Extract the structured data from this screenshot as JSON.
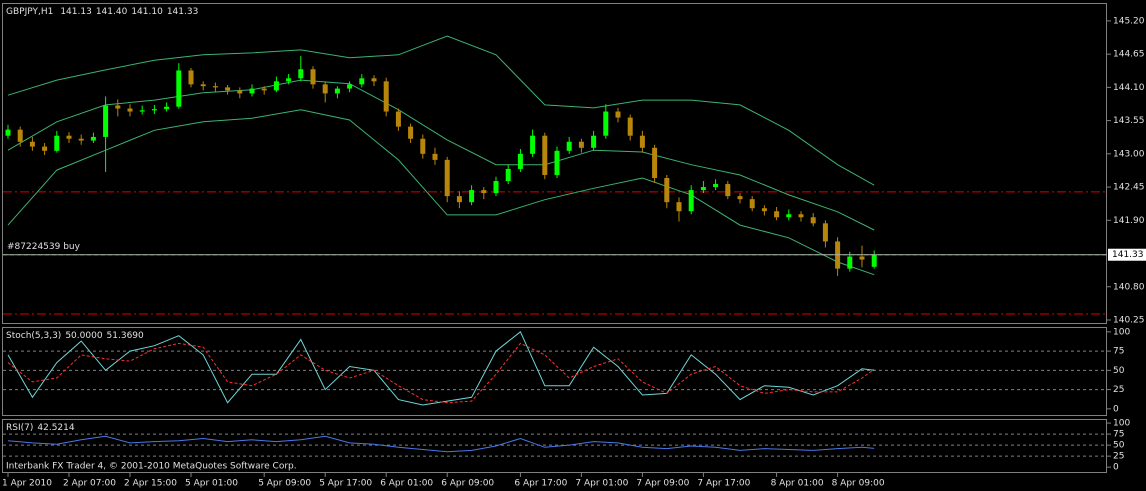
{
  "chart_data": [
    {
      "type": "candlestick",
      "symbol": "GBPJPY,H1",
      "header_values": [
        141.13,
        141.4,
        141.1,
        141.33
      ],
      "header_value_labels": [
        "141.13",
        "141.40",
        "141.10",
        "141.33"
      ],
      "categories": [
        "1 Apr 2010",
        null,
        null,
        null,
        null,
        "2 Apr 07:00",
        null,
        null,
        null,
        null,
        "2 Apr 15:00",
        null,
        null,
        null,
        null,
        "5 Apr 01:00",
        null,
        null,
        null,
        null,
        null,
        "5 Apr 09:00",
        null,
        null,
        null,
        null,
        "5 Apr 17:00",
        null,
        null,
        null,
        null,
        "6 Apr 01:00",
        null,
        null,
        null,
        null,
        "6 Apr 09:00",
        null,
        null,
        null,
        null,
        null,
        "6 Apr 17:00",
        null,
        null,
        null,
        null,
        "7 Apr 01:00",
        null,
        null,
        null,
        null,
        "7 Apr 09:00",
        null,
        null,
        null,
        null,
        "7 Apr 17:00",
        null,
        null,
        null,
        null,
        null,
        "8 Apr 01:00",
        null,
        null,
        null,
        null,
        "8 Apr 09:00",
        null,
        null,
        null
      ],
      "candles": [
        [
          143.3,
          143.48,
          143.25,
          143.4
        ],
        [
          143.4,
          143.45,
          143.12,
          143.2
        ],
        [
          143.2,
          143.28,
          143.05,
          143.12
        ],
        [
          143.12,
          143.18,
          142.98,
          143.05
        ],
        [
          143.05,
          143.38,
          143.02,
          143.3
        ],
        [
          143.3,
          143.36,
          143.18,
          143.25
        ],
        [
          143.25,
          143.32,
          143.15,
          143.22
        ],
        [
          143.22,
          143.35,
          143.18,
          143.28
        ],
        [
          143.28,
          143.95,
          142.7,
          143.8
        ],
        [
          143.8,
          143.9,
          143.62,
          143.75
        ],
        [
          143.75,
          143.82,
          143.62,
          143.7
        ],
        [
          143.7,
          143.8,
          143.65,
          143.72
        ],
        [
          143.72,
          143.81,
          143.66,
          143.74
        ],
        [
          143.74,
          143.85,
          143.7,
          143.78
        ],
        [
          143.78,
          144.5,
          143.75,
          144.38
        ],
        [
          144.38,
          144.42,
          144.1,
          144.15
        ],
        [
          144.15,
          144.2,
          144.05,
          144.12
        ],
        [
          144.12,
          144.18,
          144.02,
          144.1
        ],
        [
          144.1,
          144.14,
          143.98,
          144.05
        ],
        [
          144.05,
          144.1,
          143.92,
          144
        ],
        [
          144,
          144.15,
          143.95,
          144.08
        ],
        [
          144.08,
          144.12,
          143.98,
          144.05
        ],
        [
          144.05,
          144.28,
          144.02,
          144.2
        ],
        [
          144.2,
          144.32,
          144.15,
          144.25
        ],
        [
          144.25,
          144.62,
          144.2,
          144.4
        ],
        [
          144.4,
          144.45,
          144.08,
          144.15
        ],
        [
          144.15,
          144.2,
          143.85,
          144
        ],
        [
          144,
          144.12,
          143.92,
          144.08
        ],
        [
          144.08,
          144.2,
          144.02,
          144.15
        ],
        [
          144.15,
          144.32,
          144.1,
          144.25
        ],
        [
          144.25,
          144.3,
          144.12,
          144.2
        ],
        [
          144.2,
          144.26,
          143.62,
          143.7
        ],
        [
          143.7,
          143.75,
          143.38,
          143.45
        ],
        [
          143.45,
          143.5,
          143.18,
          143.25
        ],
        [
          143.25,
          143.32,
          142.92,
          143
        ],
        [
          143,
          143.1,
          142.82,
          142.9
        ],
        [
          142.9,
          142.95,
          142.2,
          142.3
        ],
        [
          142.3,
          142.38,
          142.1,
          142.2
        ],
        [
          142.2,
          142.48,
          142.15,
          142.4
        ],
        [
          142.4,
          142.45,
          142.25,
          142.35
        ],
        [
          142.35,
          142.62,
          142.3,
          142.55
        ],
        [
          142.55,
          142.82,
          142.5,
          142.75
        ],
        [
          142.75,
          143.08,
          142.7,
          143
        ],
        [
          143,
          143.4,
          142.95,
          143.3
        ],
        [
          143.3,
          143.35,
          142.58,
          142.65
        ],
        [
          142.65,
          143.12,
          142.6,
          143.05
        ],
        [
          143.05,
          143.28,
          143,
          143.2
        ],
        [
          143.2,
          143.25,
          143.02,
          143.1
        ],
        [
          143.1,
          143.38,
          143.05,
          143.3
        ],
        [
          143.3,
          143.82,
          143.25,
          143.7
        ],
        [
          143.7,
          143.76,
          143.52,
          143.6
        ],
        [
          143.6,
          143.65,
          143.22,
          143.3
        ],
        [
          143.3,
          143.38,
          143.02,
          143.1
        ],
        [
          143.1,
          143.15,
          142.52,
          142.6
        ],
        [
          142.6,
          142.65,
          142.1,
          142.2
        ],
        [
          142.2,
          142.28,
          141.88,
          142.05
        ],
        [
          142.05,
          142.48,
          142,
          142.4
        ],
        [
          142.4,
          142.55,
          142.35,
          142.45
        ],
        [
          142.45,
          142.58,
          142.4,
          142.5
        ],
        [
          142.5,
          142.55,
          142.25,
          142.3
        ],
        [
          142.3,
          142.35,
          142.18,
          142.25
        ],
        [
          142.25,
          142.3,
          142.05,
          142.1
        ],
        [
          142.1,
          142.15,
          141.98,
          142.05
        ],
        [
          142.05,
          142.12,
          141.9,
          141.95
        ],
        [
          141.95,
          142.08,
          141.9,
          142
        ],
        [
          142,
          142.05,
          141.88,
          141.95
        ],
        [
          141.95,
          142.02,
          141.8,
          141.85
        ],
        [
          141.85,
          141.9,
          141.45,
          141.55
        ],
        [
          141.55,
          141.62,
          140.98,
          141.1
        ],
        [
          141.1,
          141.38,
          141.05,
          141.3
        ],
        [
          141.3,
          141.48,
          141.12,
          141.25
        ],
        [
          141.13,
          141.4,
          141.1,
          141.33
        ]
      ],
      "up_color": "#00ff00",
      "down_color": "#b8860b",
      "bands": {
        "color": "#3cb371",
        "x": [
          0,
          4,
          8,
          12,
          16,
          20,
          24,
          28,
          32,
          36,
          40,
          44,
          48,
          52,
          56,
          60,
          64,
          68,
          71
        ],
        "upper": [
          143.97,
          144.22,
          144.39,
          144.55,
          144.64,
          144.67,
          144.72,
          144.59,
          144.64,
          144.95,
          144.64,
          143.81,
          143.76,
          143.89,
          143.89,
          143.81,
          143.39,
          142.82,
          142.48
        ],
        "middle": [
          143.06,
          143.53,
          143.81,
          143.89,
          144.01,
          144.06,
          144.22,
          144.16,
          143.73,
          143.23,
          142.82,
          142.82,
          143.06,
          143.03,
          142.82,
          142.65,
          142.32,
          142.04,
          141.74
        ],
        "lower": [
          141.82,
          142.73,
          143.06,
          143.39,
          143.53,
          143.59,
          143.73,
          143.56,
          142.9,
          141.99,
          141.99,
          142.24,
          142.43,
          142.6,
          142.32,
          141.82,
          141.61,
          141.21,
          141
        ]
      },
      "order": {
        "label": "#87224539 buy",
        "price": 141.33,
        "color": "#00c000"
      },
      "levels": {
        "values": [
          142.37,
          140.35
        ],
        "color": "#e00000"
      },
      "ylim": [
        140.2,
        145.48
      ],
      "yticks": [
        {
          "value": 145.2,
          "label": "145.20"
        },
        144.65,
        {
          "value": 144.1,
          "label": "144.10"
        },
        143.55,
        {
          "value": 143,
          "label": "143.00"
        },
        142.45,
        {
          "value": 141.9,
          "label": "141.90"
        },
        {
          "value": 140.8,
          "label": "140.80"
        },
        140.25
      ]
    },
    {
      "type": "line",
      "title": "Stoch(5,3,3)",
      "title_values": [
        50,
        51.369
      ],
      "title_value_labels": [
        "50.0000",
        "51.3690"
      ],
      "x": [
        0,
        2,
        4,
        6,
        8,
        10,
        12,
        14,
        16,
        18,
        20,
        22,
        24,
        26,
        28,
        30,
        32,
        34,
        36,
        38,
        40,
        42,
        44,
        46,
        48,
        50,
        52,
        54,
        56,
        58,
        60,
        62,
        64,
        66,
        68,
        70,
        71
      ],
      "series": [
        {
          "color": "#6fd6d6",
          "values": [
            70,
            15,
            60,
            88,
            50,
            75,
            82,
            95,
            70,
            8,
            45,
            45,
            90,
            25,
            55,
            50,
            12,
            5,
            10,
            15,
            75,
            100,
            30,
            30,
            80,
            55,
            18,
            20,
            70,
            45,
            12,
            30,
            28,
            18,
            30,
            52,
            50
          ]
        },
        {
          "color": "#ff3030",
          "dashed": true,
          "values": [
            60,
            35,
            40,
            70,
            65,
            62,
            78,
            85,
            80,
            35,
            30,
            45,
            70,
            50,
            40,
            50,
            30,
            12,
            8,
            10,
            45,
            85,
            70,
            40,
            55,
            65,
            35,
            20,
            45,
            55,
            30,
            20,
            25,
            22,
            22,
            40,
            51.369
          ]
        }
      ],
      "ylim": [
        -8,
        105
      ],
      "yticks": [
        0,
        25,
        50,
        75,
        100
      ],
      "grid": true
    },
    {
      "type": "line",
      "title": "RSI(7)",
      "title_values": [
        42.5214
      ],
      "title_value_labels": [
        "42.5214"
      ],
      "x": [
        0,
        2,
        4,
        6,
        8,
        10,
        12,
        14,
        16,
        18,
        20,
        22,
        24,
        26,
        28,
        30,
        32,
        34,
        36,
        38,
        40,
        42,
        44,
        46,
        48,
        50,
        52,
        54,
        56,
        58,
        60,
        62,
        64,
        66,
        68,
        70,
        71
      ],
      "series": [
        {
          "color": "#4a78e8",
          "values": [
            60,
            55,
            52,
            62,
            70,
            55,
            58,
            60,
            65,
            58,
            62,
            58,
            62,
            70,
            55,
            52,
            45,
            40,
            35,
            38,
            48,
            65,
            45,
            50,
            58,
            55,
            45,
            42,
            48,
            45,
            38,
            42,
            40,
            38,
            42,
            45,
            42.5214
          ]
        }
      ],
      "ylim": [
        -11,
        107
      ],
      "yticks": [
        0,
        25,
        50,
        75,
        100
      ],
      "grid": true
    }
  ],
  "footer": "Interbank FX Trader 4, © 2001-2010 MetaQuotes Software Corp."
}
